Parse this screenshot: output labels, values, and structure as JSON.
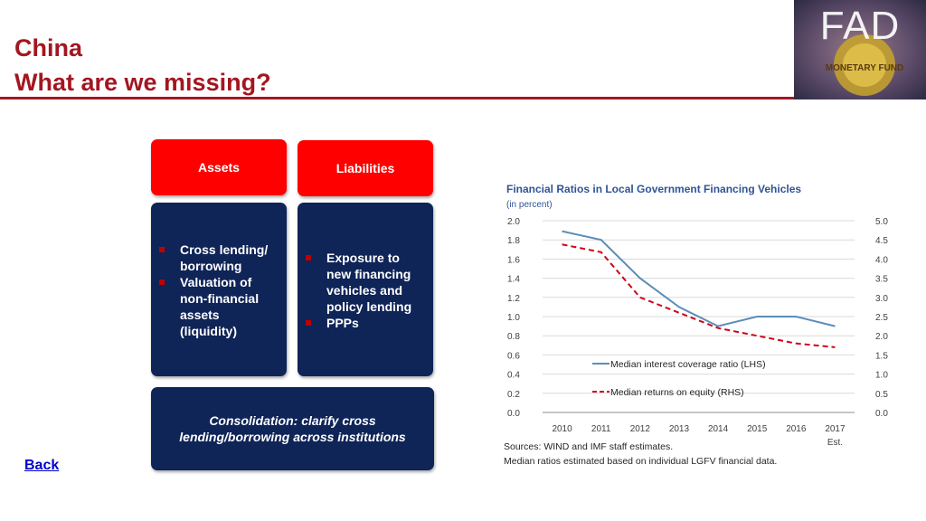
{
  "slide": {
    "title_line1": "China",
    "title_line2": "What are we missing?",
    "back_label": "Back",
    "logo_text": "FAD",
    "logo_seal_text": "MONETARY FUND"
  },
  "boxes": {
    "assets_header": "Assets",
    "liabilities_header": "Liabilities",
    "assets_items": [
      "Cross lending/ borrowing",
      "Valuation of non-financial assets (liquidity)"
    ],
    "liabilities_items": [
      "Exposure to new financing vehicles and policy lending",
      "PPPs"
    ],
    "consolidation": "Consolidation: clarify cross lending/borrowing across institutions"
  },
  "chart_data": {
    "type": "line",
    "title": "Financial Ratios in Local Government Financing Vehicles",
    "subtitle": "(in percent)",
    "x": [
      "2010",
      "2011",
      "2012",
      "2013",
      "2014",
      "2015",
      "2016",
      "2017"
    ],
    "x_sublabel": {
      "2017": "Est."
    },
    "y_left_lim": [
      0.0,
      2.0
    ],
    "y_left_ticks": [
      "0.0",
      "0.2",
      "0.4",
      "0.6",
      "0.8",
      "1.0",
      "1.2",
      "1.4",
      "1.6",
      "1.8",
      "2.0"
    ],
    "y_right_lim": [
      0.0,
      5.0
    ],
    "y_right_ticks": [
      "0.0",
      "0.5",
      "1.0",
      "1.5",
      "2.0",
      "2.5",
      "3.0",
      "3.5",
      "4.0",
      "4.5",
      "5.0"
    ],
    "series": [
      {
        "name": "Median interest coverage ratio (LHS)",
        "axis": "left",
        "color": "#5b8db8",
        "dash": "solid",
        "values": [
          1.89,
          1.8,
          1.4,
          1.1,
          0.9,
          1.0,
          1.0,
          0.9
        ]
      },
      {
        "name": "Median returns on equity (RHS)",
        "axis": "right",
        "color": "#d0021b",
        "dash": "dashed",
        "values": [
          4.38,
          4.18,
          3.0,
          2.6,
          2.2,
          2.0,
          1.8,
          1.7
        ]
      }
    ],
    "grid": true,
    "legend_position": "bottom-left inside",
    "sources": "Sources: WIND and IMF staff estimates.",
    "note": "Median ratios estimated based on individual LGFV financial data."
  }
}
